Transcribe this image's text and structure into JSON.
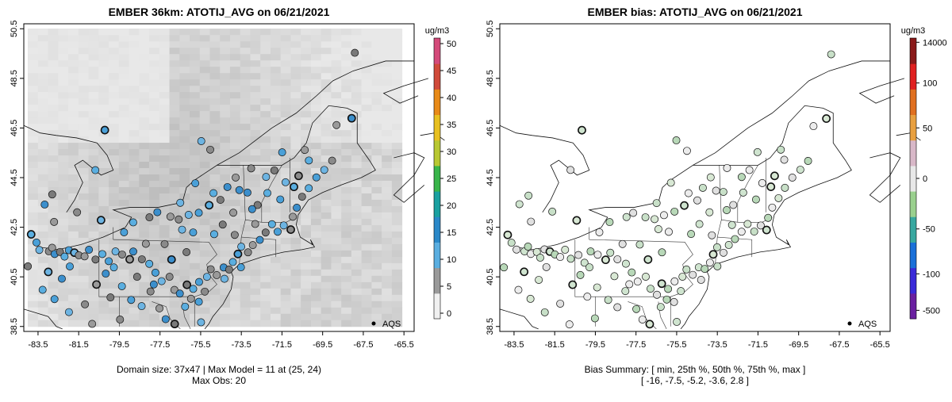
{
  "panels": [
    {
      "id": "model",
      "title": "EMBER 36km: ATOTIJ_AVG on 06/21/2021",
      "x_ticks": [
        "-83.5",
        "-81.5",
        "-79.5",
        "-77.5",
        "-75.5",
        "-73.5",
        "-71.5",
        "-69.5",
        "-67.5",
        "-65.5"
      ],
      "y_ticks": [
        "38.5",
        "40.5",
        "42.5",
        "44.5",
        "46.5",
        "48.5",
        "50.5"
      ],
      "colorbar": {
        "unit": "ug/m3",
        "labels": [
          "0",
          "5",
          "10",
          "15",
          "20",
          "25",
          "30",
          "35",
          "40",
          "45",
          "50"
        ],
        "colors": [
          "#f0f0f0",
          "#9a9a9a",
          "#5aaee0",
          "#2a88c8",
          "#1aa0a0",
          "#39b54a",
          "#b8c832",
          "#e8c020",
          "#e88a18",
          "#d04a3a",
          "#d44a7a"
        ]
      },
      "legend": "AQS",
      "caption": [
        "Domain size: 37x47 | Max Model = 11 at (25, 24)",
        "Max Obs: 20"
      ]
    },
    {
      "id": "bias",
      "title": "EMBER bias: ATOTIJ_AVG on 06/21/2021",
      "x_ticks": [
        "-83.5",
        "-81.5",
        "-79.5",
        "-77.5",
        "-75.5",
        "-73.5",
        "-71.5",
        "-69.5",
        "-67.5",
        "-65.5"
      ],
      "y_ticks": [
        "38.5",
        "40.5",
        "42.5",
        "44.5",
        "46.5",
        "48.5",
        "50.5"
      ],
      "colorbar": {
        "unit": "ug/m3",
        "labels": [
          "-500",
          "-100",
          "-50",
          "0",
          "50",
          "100",
          "14000"
        ],
        "colors": [
          "#6a1fa0",
          "#3a2ad8",
          "#1a70d8",
          "#38a8a0",
          "#9ad08e",
          "#e8e8e8",
          "#d8b8c8",
          "#e8a040",
          "#e07020",
          "#e02020",
          "#8a1a1a"
        ]
      },
      "legend": "AQS",
      "caption": [
        "Bias Summary: [ min, 25th %, 50th %, 75th %, max ]",
        "[ -16,  -7.5,  -5.2,  -3.6,  2.8 ]"
      ]
    }
  ]
}
